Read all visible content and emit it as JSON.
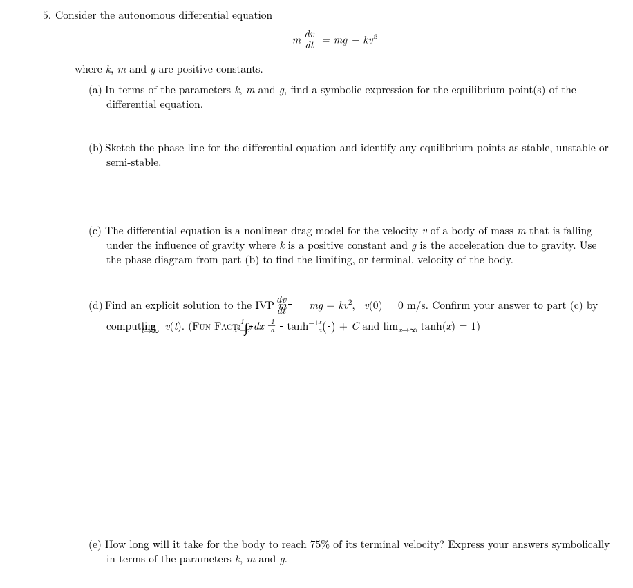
{
  "problem_number": "5.",
  "stem_line1": "Consider the autonomous differential equation",
  "equation_html": "<span class='it'>m</span><span class='frac'><span class='n'>dv</span><span class='d'>dt</span></span> = <span class='it'>mg</span> − <span class='it'>kv</span><sup>2</sup>",
  "stem_line2_html": "where <span class='it'>k</span>, <span class='it'>m</span> and <span class='it'>g</span> are positive constants.",
  "parts": {
    "a": {
      "label": "(a)",
      "html": "In terms of the parameters <span class='it'>k</span>, <span class='it'>m</span> and <span class='it'>g</span>, find a symbolic expression for the equilibrium point(s) of the differential equation."
    },
    "b": {
      "label": "(b)",
      "html": "Sketch the phase line for the differential equation and identify any equilibrium points as stable, unstable or semi-stable."
    },
    "c": {
      "label": "(c)",
      "html": "The differential equation is a nonlinear drag model for the velocity <span class='it'>v</span> of a body of mass <span class='it'>m</span> that is falling under the influence of gravity where <span class='it'>k</span> is a positive constant and <span class='it'>g</span> is the acceleration due to gravity. Use the phase diagram from part (b) to find the limiting, or terminal, velocity of the body."
    },
    "d": {
      "label": "(d)",
      "html": "Find an explicit solution to the IVP <span class='it'>m</span><span class='frac'><span class='n'>dv</span><span class='d'>dt</span></span> = <span class='it'>mg</span> − <span class='it'>kv</span><sup>2</sup>,&nbsp; <span class='it'>v</span>(0) = 0 m/s. Confirm your answer to part (c) by computing <span style='display:inline-block; position:relative;'>lim<span style='position:absolute; left:0; top:0.95em; font-size:0.70em; white-space:nowrap;'><span class='it'>t</span>→∞</span></span>&nbsp;<span class='it'>v</span>(<span class='it'>t</span>). (<span class='sc'>Fun Fact</span>: <span class='bigint'>∫</span><span class='sfrac'><span class='n'>1</span><span class='d'><span class='it'>a</span><sup>2</sup>−<span class='it'>x</span><sup>2</sup></span></span><span class='it'>dx</span> = <span class='sfrac'><span class='n'>1</span><span class='d'><span class='it'>a</span></span></span> tanh<sup>−1</sup> <span class='paren-big'>(</span><span class='sfrac'><span class='n'><span class='it'>x</span></span><span class='d'><span class='it'>a</span></span></span><span class='paren-big'>)</span> + <span class='it'>C</span> and lim<sub><span class='it'>x</span>→∞</sub> tanh(<span class='it'>x</span>) = 1)"
    },
    "e": {
      "label": "(e)",
      "html": "How long will it take for the body to reach 75% of its terminal velocity? Express your answers symbolically in terms of the parameters <span class='it'>k</span>, <span class='it'>m</span> and <span class='it'>g</span>."
    }
  }
}
